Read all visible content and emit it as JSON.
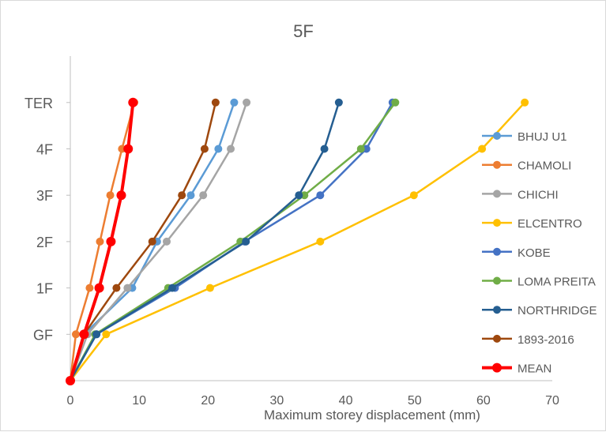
{
  "chart_data": {
    "type": "line",
    "title": "5F",
    "xlabel": "Maximum storey displacement (mm)",
    "ylabel": "",
    "xlim": [
      0,
      70
    ],
    "x_ticks": [
      0,
      10,
      20,
      30,
      40,
      50,
      60,
      70
    ],
    "x_tick_labels": [
      "0",
      "10",
      "20",
      "30",
      "40",
      "50",
      "60",
      "70"
    ],
    "categories": [
      "",
      "GF",
      "1F",
      "2F",
      "3F",
      "4F",
      "TER"
    ],
    "legend_position": "right",
    "series": [
      {
        "name": "BHUJ U1",
        "color": "#5b9bd5",
        "values": [
          0,
          2.0,
          9.0,
          12.6,
          17.5,
          21.5,
          23.8
        ]
      },
      {
        "name": "CHAMOLI",
        "color": "#ed7d31",
        "values": [
          0,
          0.8,
          2.8,
          4.3,
          5.8,
          7.5,
          9.3
        ]
      },
      {
        "name": "CHICHI",
        "color": "#a5a5a5",
        "values": [
          0,
          2.5,
          8.3,
          14.0,
          19.3,
          23.3,
          25.6
        ]
      },
      {
        "name": "ELCENTRO",
        "color": "#ffc000",
        "values": [
          0,
          5.2,
          20.3,
          36.3,
          49.9,
          59.8,
          66.0
        ]
      },
      {
        "name": "KOBE",
        "color": "#4472c4",
        "values": [
          0,
          3.8,
          15.2,
          25.3,
          36.3,
          43.0,
          46.8
        ]
      },
      {
        "name": "LOMA PREITA",
        "color": "#70ad47",
        "values": [
          0,
          3.6,
          14.2,
          24.7,
          34.0,
          42.2,
          47.2
        ]
      },
      {
        "name": "NORTHRIDGE",
        "color": "#255e91",
        "values": [
          0,
          3.8,
          14.8,
          25.5,
          33.2,
          36.9,
          39.0
        ]
      },
      {
        "name": "1893-2016",
        "color": "#9e480e",
        "values": [
          0,
          2.0,
          6.7,
          11.9,
          16.2,
          19.5,
          21.1
        ]
      },
      {
        "name": "MEAN",
        "color": "#ff0000",
        "values": [
          0,
          2.0,
          4.2,
          5.9,
          7.4,
          8.4,
          9.1
        ],
        "bold": true
      }
    ]
  }
}
